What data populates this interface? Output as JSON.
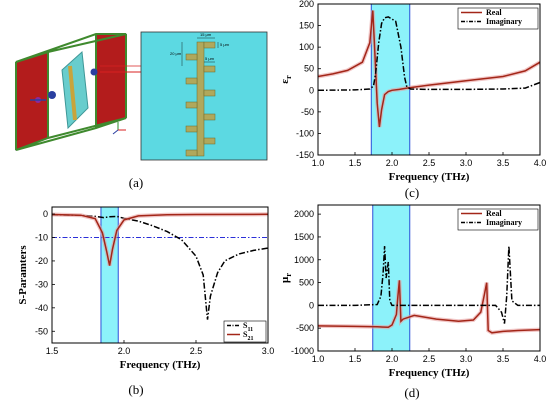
{
  "figure": {
    "panels": {
      "a": {
        "label": "(a)",
        "dims": [
          "15 μm",
          "5 μm",
          "20 μm",
          "5 μm"
        ]
      },
      "b": {
        "label": "(b)"
      },
      "c": {
        "label": "(c)"
      },
      "d": {
        "label": "(d)"
      }
    }
  },
  "chart_data": [
    {
      "id": "b",
      "type": "line",
      "xlabel": "Frequency (THz)",
      "ylabel": "S-Paramters",
      "xlim": [
        1.5,
        3.0
      ],
      "ylim": [
        -55,
        3
      ],
      "xticks": [
        1.5,
        2.0,
        2.5,
        3.0
      ],
      "xtick_labels": [
        "1.5",
        "2.0",
        "2.5",
        "3.0"
      ],
      "yticks": [
        0,
        -10,
        -20,
        -30,
        -40,
        -50
      ],
      "ytick_labels": [
        "0",
        "-10",
        "-20",
        "-30",
        "-40",
        "-50"
      ],
      "highlight_band": [
        1.84,
        1.96
      ],
      "reference_line": -10,
      "legend_position": "bottom-right",
      "grid": false,
      "series": [
        {
          "name": "S11",
          "name_main": "S",
          "name_sub": "11",
          "color": "#000000",
          "dash": "dashdot",
          "x": [
            1.5,
            1.6,
            1.7,
            1.8,
            1.86,
            1.9,
            1.95,
            2.0,
            2.1,
            2.2,
            2.3,
            2.4,
            2.5,
            2.55,
            2.58,
            2.6,
            2.65,
            2.7,
            2.8,
            2.9,
            3.0
          ],
          "y": [
            -0.3,
            -0.4,
            -0.6,
            -1.0,
            -1.5,
            -1.2,
            -1.0,
            -1.8,
            -3.0,
            -5.0,
            -7.5,
            -11.0,
            -18.0,
            -26.0,
            -45.0,
            -35.0,
            -25.0,
            -20.0,
            -17.0,
            -15.5,
            -14.5
          ]
        },
        {
          "name": "S21",
          "name_main": "S",
          "name_sub": "21",
          "color": "#a32618",
          "dash": "solid",
          "x": [
            1.5,
            1.7,
            1.8,
            1.85,
            1.88,
            1.9,
            1.92,
            1.95,
            2.0,
            2.1,
            2.3,
            2.5,
            3.0
          ],
          "y": [
            -0.2,
            -0.5,
            -2.0,
            -8.0,
            -16.0,
            -22.0,
            -15.0,
            -7.0,
            -2.5,
            -0.8,
            -0.3,
            -0.2,
            -0.1
          ]
        }
      ]
    },
    {
      "id": "c",
      "type": "line",
      "xlabel": "Frequency (THz)",
      "ylabel": "εr",
      "ylabel_main": "ε",
      "ylabel_sub": "r",
      "xlim": [
        1.0,
        4.0
      ],
      "ylim": [
        -150,
        200
      ],
      "xticks": [
        1.0,
        1.5,
        2.0,
        2.5,
        3.0,
        3.5,
        4.0
      ],
      "xtick_labels": [
        "1.0",
        "1.5",
        "2.0",
        "2.5",
        "3.0",
        "3.5",
        "4.0"
      ],
      "yticks": [
        200,
        150,
        100,
        50,
        0,
        -50,
        -100,
        -150
      ],
      "ytick_labels": [
        "200",
        "150",
        "100",
        "50",
        "0",
        "-50",
        "-100",
        "-150"
      ],
      "highlight_band": [
        1.72,
        2.24
      ],
      "legend_position": "top-right",
      "grid": false,
      "series": [
        {
          "name": "Real",
          "color": "#a32618",
          "dash": "solid",
          "x": [
            1.0,
            1.2,
            1.4,
            1.6,
            1.7,
            1.74,
            1.77,
            1.8,
            1.83,
            1.86,
            1.9,
            1.95,
            2.0,
            2.1,
            2.2,
            2.5,
            3.0,
            3.5,
            3.8,
            4.0
          ],
          "y": [
            32,
            38,
            46,
            65,
            110,
            185,
            80,
            -30,
            -85,
            -45,
            -10,
            -3,
            0,
            2,
            5,
            12,
            22,
            32,
            45,
            65
          ]
        },
        {
          "name": "Imaginary",
          "color": "#000000",
          "dash": "dashdot",
          "x": [
            1.0,
            1.5,
            1.7,
            1.75,
            1.78,
            1.82,
            1.86,
            1.9,
            1.95,
            2.05,
            2.12,
            2.17,
            2.2,
            2.25,
            2.5,
            3.0,
            3.5,
            3.8,
            4.0
          ],
          "y": [
            0,
            1,
            3,
            10,
            40,
            110,
            155,
            168,
            170,
            160,
            100,
            30,
            8,
            3,
            2,
            2,
            3,
            5,
            18
          ]
        }
      ]
    },
    {
      "id": "d",
      "type": "line",
      "xlabel": "Frequency (THz)",
      "ylabel": "μr",
      "ylabel_main": "μ",
      "ylabel_sub": "r",
      "xlim": [
        1.0,
        4.0
      ],
      "ylim": [
        -1000,
        2200
      ],
      "xticks": [
        1.0,
        1.5,
        2.0,
        2.5,
        3.0,
        3.5,
        4.0
      ],
      "xtick_labels": [
        "1.0",
        "1.5",
        "2.0",
        "2.5",
        "3.0",
        "3.5",
        "4.0"
      ],
      "yticks": [
        2000,
        1500,
        1000,
        500,
        0,
        -500,
        -1000
      ],
      "ytick_labels": [
        "2000",
        "1500",
        "1000",
        "500",
        "0",
        "-500",
        "-1000"
      ],
      "highlight_band": [
        1.74,
        2.24
      ],
      "legend_position": "top-right",
      "grid": false,
      "series": [
        {
          "name": "Real",
          "color": "#a32618",
          "dash": "solid",
          "x": [
            1.0,
            1.5,
            1.8,
            1.95,
            2.0,
            2.06,
            2.08,
            2.1,
            2.12,
            2.15,
            2.3,
            2.6,
            2.9,
            3.1,
            3.2,
            3.25,
            3.28,
            3.3,
            3.35,
            3.5,
            3.7,
            4.0
          ],
          "y": [
            -450,
            -460,
            -470,
            -480,
            -430,
            -200,
            200,
            550,
            -350,
            -300,
            -220,
            -300,
            -350,
            -320,
            -150,
            250,
            500,
            -550,
            -600,
            -570,
            -550,
            -530
          ]
        },
        {
          "name": "Imaginary",
          "color": "#000000",
          "dash": "dashdot",
          "x": [
            1.0,
            1.5,
            1.8,
            1.85,
            1.88,
            1.9,
            1.92,
            1.95,
            1.97,
            2.0,
            2.1,
            2.5,
            3.0,
            3.4,
            3.48,
            3.52,
            3.55,
            3.58,
            3.62,
            3.7,
            4.0
          ],
          "y": [
            0,
            0,
            20,
            200,
            700,
            1300,
            600,
            950,
            100,
            0,
            0,
            0,
            0,
            0,
            -150,
            -400,
            200,
            1300,
            100,
            0,
            0
          ]
        }
      ]
    }
  ]
}
